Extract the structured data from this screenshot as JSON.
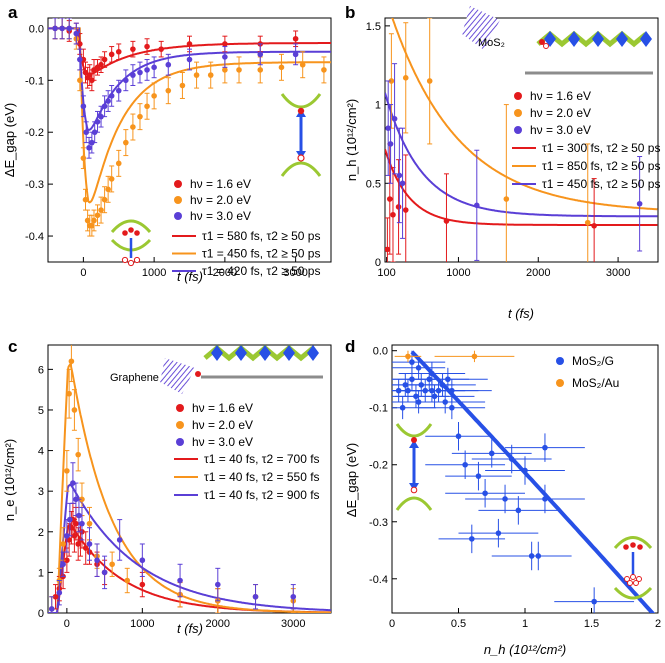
{
  "colors": {
    "red": "#e31a1c",
    "orange": "#f7941d",
    "purple": "#5a3fd6",
    "blue": "#2750e6",
    "lgreen": "#9bc832",
    "gray": "#8c8c8c"
  },
  "chart_data": [
    {
      "id": "a",
      "type": "scatter",
      "panel_label": "a",
      "xlabel": "t (fs)",
      "ylabel": "ΔE_gap (eV)",
      "xlim": [
        -500,
        3500
      ],
      "ylim": [
        -0.45,
        0.02
      ],
      "xticks": [
        0,
        1000,
        2000,
        3000
      ],
      "yticks": [
        0.0,
        -0.1,
        -0.2,
        -0.3,
        -0.4
      ],
      "legend": {
        "placement": "bottom-right",
        "markers": [
          {
            "label": "hν = 1.6 eV",
            "color": "red"
          },
          {
            "label": "hν = 2.0 eV",
            "color": "orange"
          },
          {
            "label": "hν = 3.0 eV",
            "color": "purple"
          }
        ],
        "lines": [
          {
            "label": "τ1 = 580 fs, τ2 ≥ 50 ps",
            "color": "red"
          },
          {
            "label": "τ1 = 450 fs, τ2 ≥ 50 ps",
            "color": "orange"
          },
          {
            "label": "τ1 = 420 fs, τ2 ≥ 50 ps",
            "color": "purple"
          }
        ]
      },
      "series": [
        {
          "name": "hν = 1.6 eV",
          "color": "red",
          "x": [
            -400,
            -300,
            -200,
            -100,
            -50,
            0,
            30,
            60,
            90,
            120,
            150,
            200,
            250,
            300,
            400,
            500,
            700,
            900,
            1100,
            1500,
            2000,
            2500,
            3000
          ],
          "y": [
            0.0,
            0.0,
            -0.005,
            -0.01,
            -0.03,
            -0.06,
            -0.085,
            -0.095,
            -0.09,
            -0.1,
            -0.08,
            -0.075,
            -0.07,
            -0.06,
            -0.05,
            -0.045,
            -0.04,
            -0.035,
            -0.04,
            -0.03,
            -0.03,
            -0.03,
            -0.02
          ],
          "err": [
            0.02,
            0.02,
            0.02,
            0.02,
            0.02,
            0.02,
            0.02,
            0.02,
            0.02,
            0.02,
            0.02,
            0.015,
            0.015,
            0.015,
            0.015,
            0.015,
            0.015,
            0.015,
            0.015,
            0.015,
            0.015,
            0.015,
            0.015
          ]
        },
        {
          "name": "hν = 2.0 eV",
          "color": "orange",
          "x": [
            -400,
            -300,
            -200,
            -100,
            -50,
            0,
            30,
            60,
            90,
            120,
            150,
            200,
            250,
            300,
            350,
            400,
            500,
            600,
            700,
            800,
            900,
            1000,
            1200,
            1400,
            1600,
            1800,
            2000,
            2200,
            2500,
            2800,
            3100,
            3400
          ],
          "y": [
            0.0,
            0.0,
            0.0,
            -0.02,
            -0.1,
            -0.25,
            -0.33,
            -0.37,
            -0.38,
            -0.38,
            -0.37,
            -0.36,
            -0.35,
            -0.33,
            -0.31,
            -0.29,
            -0.26,
            -0.22,
            -0.19,
            -0.17,
            -0.15,
            -0.13,
            -0.12,
            -0.11,
            -0.09,
            -0.09,
            -0.08,
            -0.08,
            -0.08,
            -0.075,
            -0.07,
            -0.08
          ],
          "err": [
            0.02,
            0.02,
            0.02,
            0.02,
            0.02,
            0.02,
            0.02,
            0.02,
            0.02,
            0.02,
            0.02,
            0.02,
            0.025,
            0.025,
            0.025,
            0.025,
            0.025,
            0.025,
            0.025,
            0.025,
            0.025,
            0.025,
            0.025,
            0.025,
            0.025,
            0.025,
            0.025,
            0.025,
            0.025,
            0.025,
            0.025,
            0.025
          ]
        },
        {
          "name": "hν = 3.0 eV",
          "color": "purple",
          "x": [
            -400,
            -300,
            -200,
            -100,
            -50,
            0,
            40,
            80,
            120,
            160,
            200,
            250,
            300,
            350,
            400,
            500,
            600,
            700,
            800,
            900,
            1000,
            1200,
            1500,
            2000,
            2500,
            3000
          ],
          "y": [
            0.0,
            0.0,
            0.0,
            -0.01,
            -0.06,
            -0.15,
            -0.2,
            -0.23,
            -0.22,
            -0.2,
            -0.18,
            -0.17,
            -0.15,
            -0.14,
            -0.13,
            -0.12,
            -0.1,
            -0.09,
            -0.085,
            -0.08,
            -0.075,
            -0.07,
            -0.06,
            -0.055,
            -0.05,
            -0.05
          ],
          "err": [
            0.02,
            0.02,
            0.02,
            0.02,
            0.02,
            0.02,
            0.02,
            0.02,
            0.02,
            0.02,
            0.02,
            0.02,
            0.02,
            0.02,
            0.02,
            0.02,
            0.02,
            0.02,
            0.02,
            0.02,
            0.02,
            0.02,
            0.02,
            0.02,
            0.02,
            0.02
          ]
        }
      ],
      "fits": [
        {
          "color": "red",
          "t0": -80,
          "peak": -0.1,
          "offset": -0.028,
          "tau1": 580
        },
        {
          "color": "orange",
          "t0": -50,
          "peak": -0.385,
          "offset": -0.065,
          "tau1": 450
        },
        {
          "color": "purple",
          "t0": -60,
          "peak": -0.225,
          "offset": -0.045,
          "tau1": 420
        }
      ]
    },
    {
      "id": "b",
      "type": "scatter",
      "panel_label": "b",
      "xlabel": "t (fs)",
      "ylabel": "n_h (10¹²/cm²)",
      "xlim": [
        80,
        3500
      ],
      "ylim": [
        0,
        1.55
      ],
      "xticks": [
        100,
        1000,
        2000,
        3000
      ],
      "yticks": [
        0,
        0.5,
        1.0,
        1.5
      ],
      "inset_label": "MoS₂",
      "legend": {
        "placement": "right",
        "markers": [
          {
            "label": "hν = 1.6 eV",
            "color": "red"
          },
          {
            "label": "hν = 2.0 eV",
            "color": "orange"
          },
          {
            "label": "hν = 3.0 eV",
            "color": "purple"
          }
        ],
        "lines": [
          {
            "label": "τ1 = 300 fs, τ2 ≥ 50 ps",
            "color": "red"
          },
          {
            "label": "τ1 = 850 fs, τ2 ≥ 50 ps",
            "color": "orange"
          },
          {
            "label": "τ1 = 450 fs, τ2 ≥ 50 ps",
            "color": "purple"
          }
        ]
      },
      "series": [
        {
          "name": "hν = 1.6 eV",
          "color": "red",
          "x": [
            110,
            140,
            180,
            250,
            340,
            850,
            2700
          ],
          "y": [
            0.08,
            0.4,
            0.3,
            0.35,
            0.33,
            0.26,
            0.23
          ],
          "err": [
            0.2,
            0.35,
            0.3,
            0.3,
            0.35,
            0.3,
            0.3
          ]
        },
        {
          "name": "hν = 2.0 eV",
          "color": "orange",
          "x": [
            160,
            340,
            640,
            1600,
            2620
          ],
          "y": [
            1.15,
            1.17,
            1.15,
            0.4,
            0.25
          ],
          "err": [
            0.3,
            0.35,
            0.4,
            0.6,
            0.5
          ]
        },
        {
          "name": "hν = 3.0 eV",
          "color": "purple",
          "x": [
            120,
            150,
            200,
            260,
            300,
            1230,
            3270
          ],
          "y": [
            0.85,
            0.75,
            0.91,
            0.55,
            0.5,
            0.36,
            0.37
          ],
          "err": [
            0.3,
            0.25,
            0.35,
            0.3,
            0.35,
            0.35,
            0.3
          ]
        }
      ],
      "fits": [
        {
          "color": "red",
          "a": 0.45,
          "tau1": 300,
          "offset": 0.235
        },
        {
          "color": "orange",
          "a": 1.35,
          "tau1": 850,
          "offset": 0.31
        },
        {
          "color": "purple",
          "a": 0.75,
          "tau1": 450,
          "offset": 0.29
        }
      ]
    },
    {
      "id": "c",
      "type": "scatter",
      "panel_label": "c",
      "xlabel": "t (fs)",
      "ylabel": "n_e (10¹²/cm²)",
      "xlim": [
        -250,
        3500
      ],
      "ylim": [
        0,
        6.6
      ],
      "xticks": [
        0,
        1000,
        2000,
        3000
      ],
      "yticks": [
        0,
        1,
        2,
        3,
        4,
        5,
        6
      ],
      "inset_label": "Graphene",
      "legend": {
        "placement": "right",
        "markers": [
          {
            "label": "hν = 1.6 eV",
            "color": "red"
          },
          {
            "label": "hν = 2.0 eV",
            "color": "orange"
          },
          {
            "label": "hν = 3.0 eV",
            "color": "purple"
          }
        ],
        "lines": [
          {
            "label": "τ1 = 40 fs, τ2 = 700 fs",
            "color": "red"
          },
          {
            "label": "τ1 = 40 fs, τ2 = 550 fs",
            "color": "orange"
          },
          {
            "label": "τ1 = 40 fs, τ2 = 900 fs",
            "color": "purple"
          }
        ]
      },
      "series": [
        {
          "name": "hν = 1.6 eV",
          "color": "red",
          "x": [
            -150,
            -100,
            -50,
            0,
            30,
            60,
            80,
            100,
            120,
            150,
            180,
            200,
            250,
            300,
            400,
            500,
            1000,
            1500,
            2000
          ],
          "y": [
            0.4,
            0.6,
            0.9,
            1.3,
            1.8,
            2.1,
            2.3,
            1.9,
            2.2,
            1.7,
            1.8,
            2.0,
            1.6,
            1.5,
            1.2,
            1.0,
            0.7,
            0.45,
            0.3
          ],
          "err": [
            0.3,
            0.3,
            0.3,
            0.3,
            0.4,
            0.4,
            0.4,
            0.4,
            0.4,
            0.4,
            0.4,
            0.4,
            0.4,
            0.3,
            0.3,
            0.3,
            0.3,
            0.3,
            0.3
          ]
        },
        {
          "name": "hν = 2.0 eV",
          "color": "orange",
          "x": [
            -200,
            -100,
            -50,
            0,
            30,
            60,
            100,
            150,
            200,
            300,
            400,
            600,
            800,
            1500,
            2000,
            2500,
            3000
          ],
          "y": [
            0.1,
            0.8,
            1.7,
            3.5,
            5.4,
            6.2,
            5.0,
            3.9,
            2.8,
            2.2,
            1.4,
            1.2,
            0.8,
            0.45,
            0.3,
            0.4,
            0.3
          ],
          "err": [
            0.3,
            0.3,
            0.4,
            0.5,
            0.6,
            0.5,
            0.5,
            0.4,
            0.4,
            0.4,
            0.3,
            0.3,
            0.3,
            0.3,
            0.3,
            0.3,
            0.3
          ]
        },
        {
          "name": "hν = 3.0 eV",
          "color": "purple",
          "x": [
            -200,
            -100,
            -50,
            0,
            40,
            80,
            120,
            160,
            200,
            300,
            400,
            500,
            700,
            1000,
            1500,
            2000,
            2500,
            3000
          ],
          "y": [
            0.1,
            0.5,
            1.2,
            1.9,
            2.3,
            3.2,
            2.8,
            2.4,
            2.2,
            1.7,
            1.3,
            1.0,
            1.8,
            1.3,
            0.8,
            0.7,
            0.4,
            0.4
          ],
          "err": [
            0.3,
            0.3,
            0.3,
            0.4,
            0.4,
            0.5,
            0.4,
            0.4,
            0.4,
            0.4,
            0.4,
            0.4,
            0.5,
            0.4,
            0.4,
            0.4,
            0.3,
            0.3
          ]
        }
      ],
      "fits": [
        {
          "color": "red",
          "t0": -130,
          "amp": 2.2,
          "tau1": 40,
          "tau2": 700
        },
        {
          "color": "orange",
          "t0": -130,
          "amp": 6.2,
          "tau1": 40,
          "tau2": 550
        },
        {
          "color": "purple",
          "t0": -130,
          "amp": 3.2,
          "tau1": 40,
          "tau2": 900
        }
      ]
    },
    {
      "id": "d",
      "type": "scatter",
      "panel_label": "d",
      "xlabel": "n_h (10¹²/cm²)",
      "ylabel": "ΔE_gap (eV)",
      "xlim": [
        0,
        2.0
      ],
      "ylim": [
        -0.46,
        0.01
      ],
      "xticks": [
        0,
        0.5,
        1.0,
        1.5,
        2.0
      ],
      "yticks": [
        0.0,
        -0.1,
        -0.2,
        -0.3,
        -0.4
      ],
      "legend": {
        "placement": "top-right",
        "markers": [
          {
            "label": "MoS₂/G",
            "color": "blue"
          },
          {
            "label": "MoS₂/Au",
            "color": "orange"
          }
        ]
      },
      "series": [
        {
          "name": "MoS₂/G",
          "color": "blue",
          "x": [
            0.05,
            0.08,
            0.1,
            0.12,
            0.15,
            0.18,
            0.2,
            0.22,
            0.25,
            0.28,
            0.3,
            0.32,
            0.35,
            0.38,
            0.4,
            0.42,
            0.45,
            0.5,
            0.55,
            0.6,
            0.65,
            0.7,
            0.75,
            0.8,
            0.85,
            0.9,
            0.95,
            1.0,
            1.05,
            1.1,
            1.15,
            1.15,
            1.52,
            0.15,
            0.45,
            0.2,
            0.3
          ],
          "y": [
            -0.07,
            -0.1,
            -0.06,
            -0.07,
            -0.05,
            -0.08,
            -0.03,
            -0.06,
            -0.07,
            -0.05,
            -0.04,
            -0.08,
            -0.07,
            -0.06,
            -0.09,
            -0.05,
            -0.07,
            -0.15,
            -0.2,
            -0.33,
            -0.22,
            -0.25,
            -0.18,
            -0.32,
            -0.26,
            -0.19,
            -0.28,
            -0.21,
            -0.36,
            -0.36,
            -0.17,
            -0.26,
            -0.44,
            -0.02,
            -0.1,
            -0.09,
            -0.07
          ],
          "xerr": [
            0.3,
            0.25,
            0.3,
            0.3,
            0.2,
            0.25,
            0.2,
            0.25,
            0.3,
            0.3,
            0.25,
            0.3,
            0.3,
            0.25,
            0.3,
            0.3,
            0.3,
            0.25,
            0.3,
            0.25,
            0.25,
            0.3,
            0.3,
            0.3,
            0.3,
            0.3,
            0.3,
            0.3,
            0.3,
            0.25,
            0.3,
            0.3,
            0.3,
            0.25,
            0.25,
            0.25,
            0.25
          ],
          "yerr": [
            0.02,
            0.02,
            0.02,
            0.02,
            0.02,
            0.02,
            0.02,
            0.02,
            0.02,
            0.02,
            0.02,
            0.02,
            0.02,
            0.02,
            0.02,
            0.02,
            0.02,
            0.025,
            0.025,
            0.025,
            0.025,
            0.025,
            0.025,
            0.025,
            0.025,
            0.025,
            0.025,
            0.025,
            0.025,
            0.025,
            0.025,
            0.025,
            0.025,
            0.02,
            0.02,
            0.02,
            0.02
          ]
        },
        {
          "name": "MoS₂/Au",
          "color": "orange",
          "x": [
            0.12,
            0.62
          ],
          "y": [
            -0.01,
            -0.01
          ],
          "xerr": [
            0.1,
            0.3
          ],
          "yerr": [
            0.01,
            0.01
          ]
        }
      ],
      "fit": {
        "color": "blue",
        "x0": 0.15,
        "x1": 2.0,
        "slope": -0.245,
        "quad": -0.004,
        "intercept": 0.035
      }
    }
  ]
}
